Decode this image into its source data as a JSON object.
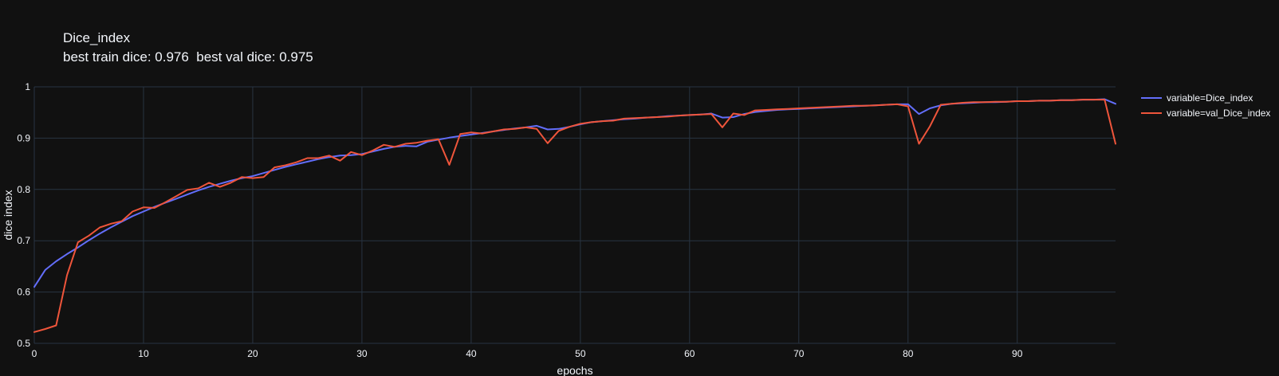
{
  "chart_data": {
    "type": "line",
    "title": "Dice_index",
    "subtitle": "best train dice: 0.976  best val dice: 0.975",
    "xlabel": "epochs",
    "ylabel": "dice index",
    "xlim": [
      0,
      99
    ],
    "ylim": [
      0.5,
      1.0
    ],
    "x_ticks": [
      0,
      10,
      20,
      30,
      40,
      50,
      60,
      70,
      80,
      90
    ],
    "y_ticks": [
      0.5,
      0.6,
      0.7,
      0.8,
      0.9,
      1
    ],
    "grid": true,
    "legend_position": "top-right",
    "background_color": "#111111",
    "grid_color": "#283442",
    "series": [
      {
        "name": "variable=Dice_index",
        "color": "#636efa",
        "x": [
          0,
          1,
          2,
          3,
          4,
          5,
          6,
          7,
          8,
          9,
          10,
          11,
          12,
          13,
          14,
          15,
          16,
          17,
          18,
          19,
          20,
          21,
          22,
          23,
          24,
          25,
          26,
          27,
          28,
          29,
          30,
          31,
          32,
          33,
          34,
          35,
          36,
          37,
          38,
          39,
          40,
          41,
          42,
          43,
          44,
          45,
          46,
          47,
          48,
          49,
          50,
          51,
          52,
          53,
          54,
          55,
          56,
          57,
          58,
          59,
          60,
          61,
          62,
          63,
          64,
          65,
          66,
          67,
          68,
          69,
          70,
          71,
          72,
          73,
          74,
          75,
          76,
          77,
          78,
          79,
          80,
          81,
          82,
          83,
          84,
          85,
          86,
          87,
          88,
          89,
          90,
          91,
          92,
          93,
          94,
          95,
          96,
          97,
          98,
          99
        ],
        "values": [
          0.61,
          0.643,
          0.66,
          0.674,
          0.687,
          0.701,
          0.714,
          0.726,
          0.737,
          0.748,
          0.757,
          0.766,
          0.774,
          0.782,
          0.79,
          0.798,
          0.805,
          0.811,
          0.817,
          0.822,
          0.826,
          0.832,
          0.838,
          0.844,
          0.849,
          0.854,
          0.859,
          0.863,
          0.866,
          0.867,
          0.869,
          0.874,
          0.879,
          0.883,
          0.885,
          0.884,
          0.893,
          0.897,
          0.901,
          0.904,
          0.907,
          0.91,
          0.913,
          0.916,
          0.919,
          0.921,
          0.924,
          0.917,
          0.918,
          0.922,
          0.927,
          0.931,
          0.933,
          0.935,
          0.937,
          0.938,
          0.94,
          0.941,
          0.943,
          0.944,
          0.945,
          0.946,
          0.948,
          0.94,
          0.941,
          0.947,
          0.951,
          0.953,
          0.955,
          0.956,
          0.957,
          0.958,
          0.959,
          0.96,
          0.961,
          0.962,
          0.963,
          0.964,
          0.965,
          0.966,
          0.966,
          0.947,
          0.958,
          0.964,
          0.967,
          0.968,
          0.969,
          0.97,
          0.97,
          0.971,
          0.972,
          0.972,
          0.973,
          0.973,
          0.974,
          0.974,
          0.975,
          0.975,
          0.976,
          0.967
        ]
      },
      {
        "name": "variable=val_Dice_index",
        "color": "#ef553b",
        "x": [
          0,
          1,
          2,
          3,
          4,
          5,
          6,
          7,
          8,
          9,
          10,
          11,
          12,
          13,
          14,
          15,
          16,
          17,
          18,
          19,
          20,
          21,
          22,
          23,
          24,
          25,
          26,
          27,
          28,
          29,
          30,
          31,
          32,
          33,
          34,
          35,
          36,
          37,
          38,
          39,
          40,
          41,
          42,
          43,
          44,
          45,
          46,
          47,
          48,
          49,
          50,
          51,
          52,
          53,
          54,
          55,
          56,
          57,
          58,
          59,
          60,
          61,
          62,
          63,
          64,
          65,
          66,
          67,
          68,
          69,
          70,
          71,
          72,
          73,
          74,
          75,
          76,
          77,
          78,
          79,
          80,
          81,
          82,
          83,
          84,
          85,
          86,
          87,
          88,
          89,
          90,
          91,
          92,
          93,
          94,
          95,
          96,
          97,
          98,
          99
        ],
        "values": [
          0.522,
          0.528,
          0.535,
          0.633,
          0.697,
          0.71,
          0.726,
          0.733,
          0.738,
          0.757,
          0.765,
          0.764,
          0.775,
          0.787,
          0.799,
          0.802,
          0.813,
          0.805,
          0.813,
          0.824,
          0.822,
          0.824,
          0.843,
          0.847,
          0.853,
          0.861,
          0.861,
          0.866,
          0.856,
          0.873,
          0.867,
          0.876,
          0.887,
          0.883,
          0.889,
          0.891,
          0.895,
          0.898,
          0.848,
          0.908,
          0.911,
          0.909,
          0.913,
          0.917,
          0.918,
          0.921,
          0.918,
          0.89,
          0.914,
          0.922,
          0.928,
          0.931,
          0.933,
          0.934,
          0.938,
          0.939,
          0.94,
          0.941,
          0.942,
          0.944,
          0.945,
          0.946,
          0.947,
          0.921,
          0.948,
          0.945,
          0.954,
          0.955,
          0.956,
          0.957,
          0.958,
          0.959,
          0.96,
          0.961,
          0.962,
          0.963,
          0.963,
          0.964,
          0.965,
          0.966,
          0.962,
          0.889,
          0.923,
          0.965,
          0.967,
          0.969,
          0.97,
          0.97,
          0.971,
          0.971,
          0.972,
          0.972,
          0.973,
          0.973,
          0.974,
          0.974,
          0.975,
          0.975,
          0.975,
          0.889
        ]
      }
    ]
  }
}
